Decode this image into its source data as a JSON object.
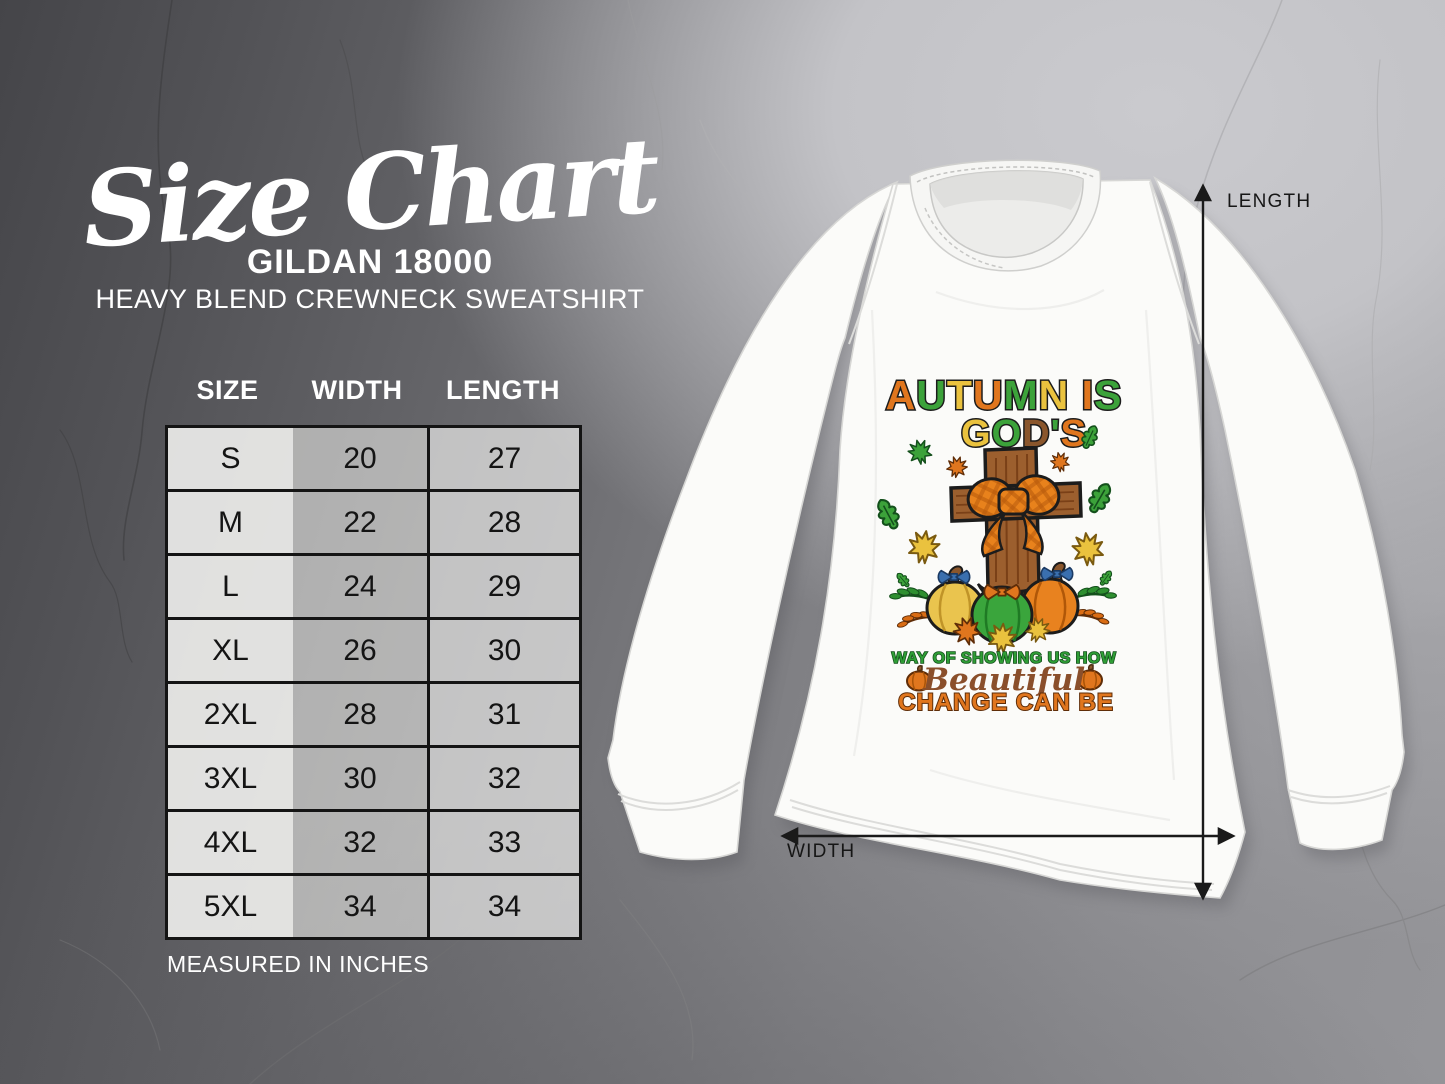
{
  "header": {
    "title": "Size Chart",
    "product": "GILDAN 18000",
    "subtitle": "HEAVY BLEND CREWNECK SWEATSHIRT"
  },
  "table": {
    "columns": [
      "SIZE",
      "WIDTH",
      "LENGTH"
    ],
    "rows": [
      [
        "S",
        "20",
        "27"
      ],
      [
        "M",
        "22",
        "28"
      ],
      [
        "L",
        "24",
        "29"
      ],
      [
        "XL",
        "26",
        "30"
      ],
      [
        "2XL",
        "28",
        "31"
      ],
      [
        "3XL",
        "30",
        "32"
      ],
      [
        "4XL",
        "32",
        "33"
      ],
      [
        "5XL",
        "34",
        "34"
      ]
    ],
    "footnote": "MEASURED IN INCHES"
  },
  "measurements": {
    "length_label": "LENGTH",
    "width_label": "WIDTH"
  },
  "design": {
    "line1": {
      "text": "AUTUMN IS",
      "colors": [
        "#e0761e",
        "#3ca23a",
        "#eac23e",
        "#e0761e",
        "#3ca23a",
        "#eac23e",
        "",
        "#e0761e",
        "#3ca23a"
      ]
    },
    "line2": {
      "text": "GOD'S",
      "colors": [
        "#eac23e",
        "#3ca23a",
        "#8a562c",
        "#3ca23a",
        "#e0761e"
      ]
    },
    "line3": "WAY OF SHOWING US HOW",
    "line4": "Beautiful",
    "line5": "CHANGE CAN BE"
  },
  "palette": {
    "design_orange": "#e0761e",
    "design_green": "#3ca23a",
    "design_gold": "#eac23e",
    "wood_brown": "#9c5f2e",
    "script_brown": "#8a4f2b",
    "bow_blue": "#3a6fae",
    "arrow_black": "#1a1a1a",
    "shirt_white": "#fbfbf9"
  }
}
